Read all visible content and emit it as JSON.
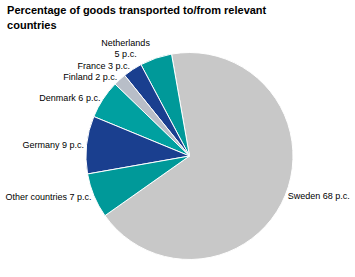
{
  "chart_data": {
    "type": "pie",
    "title": "Percentage of goods transported to/from relevant\ncountries",
    "categories": [
      "Sweden 68 p.c.",
      "Netherlands\n5 p.c.",
      "France 3 p.c.",
      "Finland 2 p.c.",
      "Denmark 6 p.c.",
      "Germany 9 p.c.",
      "Other countries 7 p.c."
    ],
    "values": [
      68,
      5,
      3,
      2,
      6,
      9,
      7
    ],
    "colors": [
      "#c8c8c8",
      "#009999",
      "#1a3f8f",
      "#b8bec8",
      "#00a0a0",
      "#1a3f8f",
      "#009999"
    ]
  }
}
